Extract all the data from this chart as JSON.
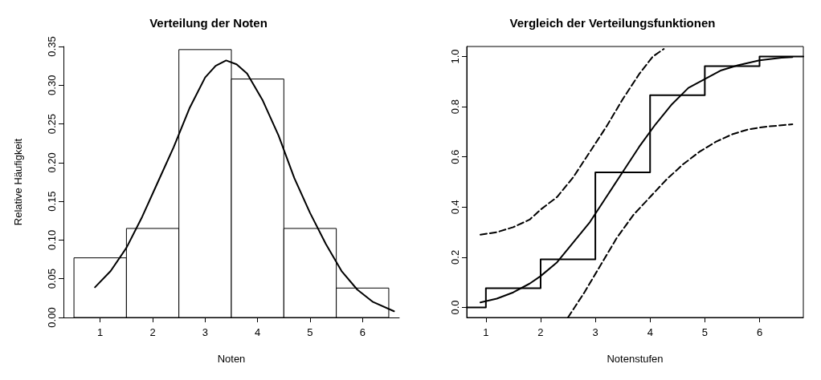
{
  "chart_data": [
    {
      "type": "histogram",
      "title": "Verteilung der Noten",
      "xlabel": "Noten",
      "ylabel": "Relative Häufigkeit",
      "bins": [
        0.5,
        1.5,
        2.5,
        3.5,
        4.5,
        5.5,
        6.5
      ],
      "values": [
        0.077,
        0.115,
        0.346,
        0.308,
        0.115,
        0.038
      ],
      "color": "#ffffff",
      "xlim": [
        0.3,
        6.7
      ],
      "xticks": [
        1,
        2,
        3,
        4,
        5,
        6
      ],
      "ylim": [
        0,
        0.35
      ],
      "yticks": [
        {
          "value": 0,
          "label": "0.00"
        },
        0.05,
        {
          "value": 0.1,
          "label": "0.10"
        },
        0.15,
        {
          "value": 0.2,
          "label": "0.20"
        },
        0.25,
        {
          "value": 0.3,
          "label": "0.30"
        },
        0.35
      ],
      "grid": false,
      "marker": "none",
      "series": [
        {
          "type": "line",
          "color": "#000000",
          "x": [
            0.9,
            1.2,
            1.5,
            1.8,
            2.1,
            2.4,
            2.7,
            3.0,
            3.2,
            3.4,
            3.6,
            3.8,
            4.1,
            4.4,
            4.7,
            5.0,
            5.3,
            5.6,
            5.9,
            6.2,
            6.6
          ],
          "values": [
            0.039,
            0.06,
            0.09,
            0.13,
            0.175,
            0.22,
            0.27,
            0.31,
            0.325,
            0.332,
            0.327,
            0.315,
            0.28,
            0.235,
            0.18,
            0.135,
            0.095,
            0.06,
            0.036,
            0.02,
            0.008
          ]
        }
      ]
    },
    {
      "type": "line",
      "title": "Vergleich der Verteilungsfunktionen",
      "xlabel": "Notenstufen",
      "xlim": [
        0.65,
        6.8
      ],
      "xticks": [
        1,
        2,
        3,
        4,
        5,
        6
      ],
      "ylim": [
        -0.04,
        1.04
      ],
      "yticks": [
        {
          "value": 0,
          "label": "0.0"
        },
        0.2,
        0.4,
        0.6,
        0.8,
        {
          "value": 1,
          "label": "1.0"
        }
      ],
      "grid": false,
      "marker": "none",
      "series": [
        {
          "type": "step",
          "color": "#000000",
          "line_style": "solid",
          "x": [
            0.65,
            1,
            2,
            3,
            4,
            5,
            6,
            6.8
          ],
          "values": [
            0,
            0.077,
            0.192,
            0.538,
            0.846,
            0.962,
            1,
            1
          ]
        },
        {
          "type": "line",
          "color": "#000000",
          "line_style": "solid",
          "x": [
            0.9,
            1.2,
            1.5,
            1.8,
            2.0,
            2.3,
            2.6,
            2.9,
            3.2,
            3.5,
            3.8,
            4.1,
            4.4,
            4.7,
            5.0,
            5.3,
            5.6,
            6.0,
            6.4,
            6.6
          ],
          "values": [
            0.02,
            0.035,
            0.06,
            0.095,
            0.125,
            0.18,
            0.26,
            0.34,
            0.44,
            0.54,
            0.64,
            0.73,
            0.81,
            0.875,
            0.91,
            0.945,
            0.965,
            0.985,
            0.995,
            0.998
          ]
        },
        {
          "type": "line",
          "color": "#000000",
          "line_style": "dashed",
          "x": [
            0.9,
            1.2,
            1.5,
            1.8,
            2.0,
            2.3,
            2.6,
            2.9,
            3.2,
            3.5,
            3.8,
            4.05,
            4.25
          ],
          "values": [
            0.29,
            0.3,
            0.32,
            0.35,
            0.39,
            0.44,
            0.52,
            0.62,
            0.72,
            0.83,
            0.93,
            1.0,
            1.03
          ]
        },
        {
          "type": "line",
          "color": "#000000",
          "line_style": "dashed",
          "x": [
            2.5,
            2.8,
            3.1,
            3.4,
            3.7,
            4.0,
            4.3,
            4.6,
            4.9,
            5.2,
            5.5,
            5.8,
            6.1,
            6.6
          ],
          "values": [
            -0.04,
            0.06,
            0.17,
            0.28,
            0.37,
            0.44,
            0.51,
            0.57,
            0.62,
            0.66,
            0.69,
            0.71,
            0.72,
            0.73
          ]
        }
      ]
    }
  ]
}
